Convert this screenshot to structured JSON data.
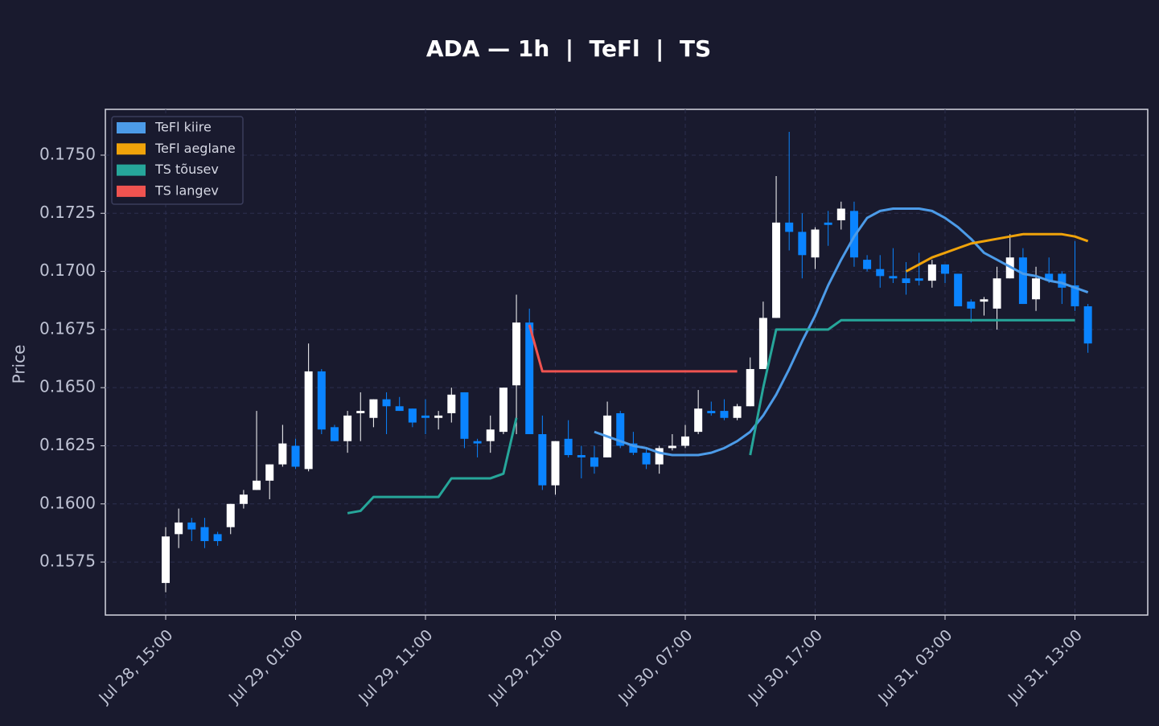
{
  "chart_data": {
    "type": "candlestick",
    "title": "ADA — 1h  |  TeFl  |  TS",
    "ylabel": "Price",
    "x": [
      "Jul 28, 15:00",
      "Jul 28, 16:00",
      "Jul 28, 17:00",
      "Jul 28, 18:00",
      "Jul 28, 19:00",
      "Jul 28, 20:00",
      "Jul 28, 21:00",
      "Jul 28, 22:00",
      "Jul 28, 23:00",
      "Jul 29, 00:00",
      "Jul 29, 01:00",
      "Jul 29, 02:00",
      "Jul 29, 03:00",
      "Jul 29, 04:00",
      "Jul 29, 05:00",
      "Jul 29, 06:00",
      "Jul 29, 07:00",
      "Jul 29, 08:00",
      "Jul 29, 09:00",
      "Jul 29, 10:00",
      "Jul 29, 11:00",
      "Jul 29, 12:00",
      "Jul 29, 13:00",
      "Jul 29, 14:00",
      "Jul 29, 15:00",
      "Jul 29, 16:00",
      "Jul 29, 17:00",
      "Jul 29, 18:00",
      "Jul 29, 19:00",
      "Jul 29, 20:00",
      "Jul 29, 21:00",
      "Jul 29, 22:00",
      "Jul 29, 23:00",
      "Jul 30, 00:00",
      "Jul 30, 01:00",
      "Jul 30, 02:00",
      "Jul 30, 03:00",
      "Jul 30, 04:00",
      "Jul 30, 05:00",
      "Jul 30, 06:00",
      "Jul 30, 07:00",
      "Jul 30, 08:00",
      "Jul 30, 09:00",
      "Jul 30, 10:00",
      "Jul 30, 11:00",
      "Jul 30, 12:00",
      "Jul 30, 13:00",
      "Jul 30, 14:00",
      "Jul 30, 15:00",
      "Jul 30, 16:00",
      "Jul 30, 17:00",
      "Jul 30, 18:00",
      "Jul 30, 19:00",
      "Jul 30, 20:00",
      "Jul 30, 21:00",
      "Jul 30, 22:00",
      "Jul 30, 23:00",
      "Jul 31, 00:00",
      "Jul 31, 01:00",
      "Jul 31, 02:00",
      "Jul 31, 03:00",
      "Jul 31, 04:00",
      "Jul 31, 05:00",
      "Jul 31, 06:00",
      "Jul 31, 07:00",
      "Jul 31, 08:00",
      "Jul 31, 09:00",
      "Jul 31, 10:00",
      "Jul 31, 11:00",
      "Jul 31, 12:00",
      "Jul 31, 13:00",
      "Jul 31, 14:00"
    ],
    "open": [
      0.1566,
      0.1587,
      0.1592,
      0.159,
      0.1587,
      0.159,
      0.16,
      0.1606,
      0.161,
      0.1617,
      0.1625,
      0.1615,
      0.1657,
      0.1633,
      0.1627,
      0.1639,
      0.1637,
      0.1645,
      0.1642,
      0.1641,
      0.1638,
      0.1637,
      0.1639,
      0.1648,
      0.1627,
      0.1627,
      0.1631,
      0.1651,
      0.1678,
      0.163,
      0.1608,
      0.1628,
      0.1621,
      0.162,
      0.162,
      0.1639,
      0.1626,
      0.1622,
      0.1617,
      0.1624,
      0.1625,
      0.1631,
      0.164,
      0.164,
      0.1637,
      0.1642,
      0.1658,
      0.168,
      0.1721,
      0.1717,
      0.1706,
      0.1721,
      0.1722,
      0.1726,
      0.1705,
      0.1701,
      0.1698,
      0.1697,
      0.1697,
      0.1696,
      0.1703,
      0.1699,
      0.1687,
      0.1687,
      0.1684,
      0.1697,
      0.1706,
      0.1688,
      0.1699,
      0.1699,
      0.1694,
      0.1685
    ],
    "high": [
      0.159,
      0.1598,
      0.1594,
      0.1594,
      0.1588,
      0.16,
      0.1606,
      0.164,
      0.1617,
      0.1634,
      0.1628,
      0.1669,
      0.1658,
      0.1634,
      0.164,
      0.1648,
      0.1645,
      0.1648,
      0.1646,
      0.1641,
      0.1645,
      0.164,
      0.165,
      0.1648,
      0.1628,
      0.1638,
      0.165,
      0.169,
      0.1684,
      0.1638,
      0.1627,
      0.1636,
      0.1625,
      0.1625,
      0.1644,
      0.164,
      0.1631,
      0.1624,
      0.1625,
      0.163,
      0.1634,
      0.1649,
      0.1644,
      0.1645,
      0.1643,
      0.1663,
      0.1687,
      0.1741,
      0.176,
      0.1725,
      0.1719,
      0.1726,
      0.173,
      0.173,
      0.1707,
      0.1707,
      0.171,
      0.1704,
      0.1708,
      0.1705,
      0.1703,
      0.1699,
      0.1688,
      0.1689,
      0.1702,
      0.1716,
      0.171,
      0.1702,
      0.1706,
      0.17,
      0.1713,
      0.1686
    ],
    "low": [
      0.1562,
      0.1581,
      0.1584,
      0.1581,
      0.1582,
      0.1587,
      0.1598,
      0.1606,
      0.1602,
      0.1616,
      0.1615,
      0.1614,
      0.163,
      0.1627,
      0.1622,
      0.1627,
      0.1633,
      0.163,
      0.164,
      0.1633,
      0.163,
      0.1632,
      0.1635,
      0.1624,
      0.162,
      0.1622,
      0.163,
      0.163,
      0.163,
      0.1606,
      0.1604,
      0.162,
      0.1611,
      0.1613,
      0.162,
      0.1624,
      0.1621,
      0.1615,
      0.1613,
      0.1623,
      0.1624,
      0.163,
      0.1638,
      0.1636,
      0.1636,
      0.1642,
      0.1658,
      0.168,
      0.1709,
      0.1697,
      0.1701,
      0.1711,
      0.1718,
      0.1702,
      0.17,
      0.1693,
      0.1695,
      0.169,
      0.1694,
      0.1693,
      0.1695,
      0.1685,
      0.1678,
      0.1681,
      0.1675,
      0.1697,
      0.1686,
      0.1683,
      0.1695,
      0.1686,
      0.1683,
      0.1665
    ],
    "close": [
      0.1586,
      0.1592,
      0.1589,
      0.1584,
      0.1584,
      0.16,
      0.1604,
      0.161,
      0.1617,
      0.1626,
      0.1616,
      0.1657,
      0.1632,
      0.1627,
      0.1638,
      0.164,
      0.1645,
      0.1642,
      0.164,
      0.1635,
      0.1637,
      0.1638,
      0.1647,
      0.1628,
      0.1626,
      0.1632,
      0.165,
      0.1678,
      0.163,
      0.1608,
      0.1627,
      0.1621,
      0.162,
      0.1616,
      0.1638,
      0.1625,
      0.1622,
      0.1617,
      0.1624,
      0.1625,
      0.1629,
      0.1641,
      0.1639,
      0.1637,
      0.1642,
      0.1658,
      0.168,
      0.1721,
      0.1717,
      0.1707,
      0.1718,
      0.172,
      0.1727,
      0.1706,
      0.1701,
      0.1698,
      0.1697,
      0.1695,
      0.1696,
      0.1703,
      0.1699,
      0.1685,
      0.1684,
      0.1688,
      0.1697,
      0.1706,
      0.1686,
      0.1697,
      0.1696,
      0.1693,
      0.1685,
      0.1669
    ],
    "up_color": "#ffffff",
    "down_color": "#0a84ff",
    "series": [
      {
        "name": "TeFl kiire",
        "color": "#4c9be8",
        "values": [
          null,
          null,
          null,
          null,
          null,
          null,
          null,
          null,
          null,
          null,
          null,
          null,
          null,
          null,
          null,
          null,
          null,
          null,
          null,
          null,
          null,
          null,
          null,
          null,
          null,
          null,
          null,
          null,
          null,
          null,
          null,
          null,
          null,
          0.1631,
          0.1629,
          0.1627,
          0.1625,
          0.1624,
          0.1622,
          0.1621,
          0.1621,
          0.1621,
          0.1622,
          0.1624,
          0.1627,
          0.1631,
          0.1638,
          0.1647,
          0.1658,
          0.167,
          0.1681,
          0.1694,
          0.1705,
          0.1715,
          0.1723,
          0.1726,
          0.1727,
          0.1727,
          0.1727,
          0.1726,
          0.1723,
          0.1719,
          0.1714,
          0.1708,
          0.1705,
          0.1702,
          0.1699,
          0.1698,
          0.1696,
          0.1695,
          0.1693,
          0.1691
        ]
      },
      {
        "name": "TeFl aeglane",
        "color": "#f0a30a",
        "values": [
          null,
          null,
          null,
          null,
          null,
          null,
          null,
          null,
          null,
          null,
          null,
          null,
          null,
          null,
          null,
          null,
          null,
          null,
          null,
          null,
          null,
          null,
          null,
          null,
          null,
          null,
          null,
          null,
          null,
          null,
          null,
          null,
          null,
          null,
          null,
          null,
          null,
          null,
          null,
          null,
          null,
          null,
          null,
          null,
          null,
          null,
          null,
          null,
          null,
          null,
          null,
          null,
          null,
          null,
          null,
          null,
          null,
          0.17,
          0.1703,
          0.1706,
          0.1708,
          0.171,
          0.1712,
          0.1713,
          0.1714,
          0.1715,
          0.1716,
          0.1716,
          0.1716,
          0.1716,
          0.1715,
          0.1713
        ]
      },
      {
        "name": "TS tõusev",
        "color": "#26a69a",
        "values": [
          null,
          null,
          null,
          null,
          null,
          null,
          null,
          null,
          null,
          null,
          null,
          null,
          null,
          null,
          0.1596,
          0.1597,
          0.1603,
          0.1603,
          0.1603,
          0.1603,
          0.1603,
          0.1603,
          0.1611,
          0.1611,
          0.1611,
          0.1611,
          0.1613,
          0.1637,
          null,
          null,
          null,
          null,
          null,
          null,
          null,
          null,
          null,
          null,
          null,
          null,
          null,
          null,
          null,
          null,
          null,
          0.1621,
          0.165,
          0.1675,
          0.1675,
          0.1675,
          0.1675,
          0.1675,
          0.1679,
          0.1679,
          0.1679,
          0.1679,
          0.1679,
          0.1679,
          0.1679,
          0.1679,
          0.1679,
          0.1679,
          0.1679,
          0.1679,
          0.1679,
          0.1679,
          0.1679,
          0.1679,
          0.1679,
          0.1679,
          0.1679,
          null
        ]
      },
      {
        "name": "TS langev",
        "color": "#ef5350",
        "values": [
          null,
          null,
          null,
          null,
          null,
          null,
          null,
          null,
          null,
          null,
          null,
          null,
          null,
          null,
          null,
          null,
          null,
          null,
          null,
          null,
          null,
          null,
          null,
          null,
          null,
          null,
          null,
          null,
          0.1677,
          0.1657,
          0.1657,
          0.1657,
          0.1657,
          0.1657,
          0.1657,
          0.1657,
          0.1657,
          0.1657,
          0.1657,
          0.1657,
          0.1657,
          0.1657,
          0.1657,
          0.1657,
          0.1657,
          null,
          null,
          null,
          null,
          null,
          null,
          null,
          null,
          null,
          null,
          null,
          null,
          null,
          null,
          null,
          null,
          null,
          null,
          null,
          null,
          null,
          null,
          null,
          null,
          null,
          null,
          null
        ]
      }
    ],
    "ylim": [
      0.15522,
      0.17697
    ],
    "yticks": [
      0.1575,
      {
        "value": 0.16,
        "label": "0.1600"
      },
      0.1625,
      {
        "value": 0.165,
        "label": "0.1650"
      },
      0.1675,
      {
        "value": 0.17,
        "label": "0.1700"
      },
      0.1725,
      {
        "value": 0.175,
        "label": "0.1750"
      }
    ],
    "xticks": [
      "Jul 28, 15:00",
      "Jul 29, 01:00",
      "Jul 29, 11:00",
      "Jul 29, 21:00",
      "Jul 30, 07:00",
      "Jul 30, 17:00",
      "Jul 31, 03:00",
      "Jul 31, 13:00"
    ],
    "grid": true,
    "legend": "upper left"
  }
}
